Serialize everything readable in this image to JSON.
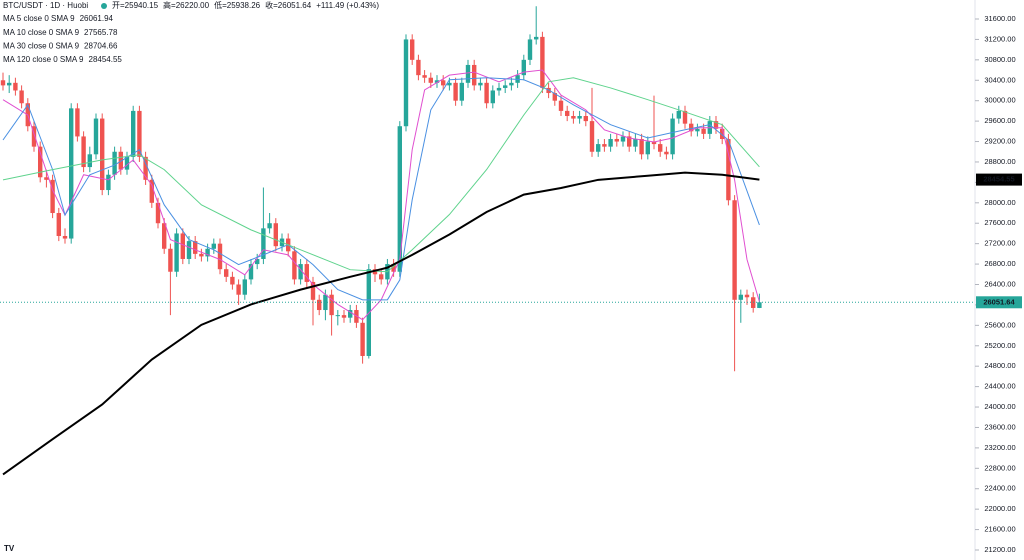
{
  "header": {
    "title": "BTC/USDT · 1D · Huobi",
    "ohlc": [
      "开=25940.15",
      "高=26220.00",
      "低=25938.26",
      "收=26051.64",
      "+111.49 (+0.43%)"
    ]
  },
  "chart_data": {
    "type": "candlestick",
    "up_color": "#26a69a",
    "down_color": "#ef5350",
    "candles": {
      "open": [
        30400,
        30300,
        30350,
        30200,
        29950,
        29500,
        29100,
        28500,
        28450,
        27800,
        27350,
        27300,
        29850,
        29300,
        28700,
        28950,
        29650,
        28250,
        28550,
        29000,
        28650,
        28900,
        29800,
        28900,
        28450,
        28000,
        27600,
        27100,
        26650,
        27400,
        26900,
        27250,
        27000,
        26950,
        27100,
        27200,
        26700,
        26550,
        26400,
        26200,
        26500,
        26800,
        26900,
        27500,
        27600,
        27150,
        27300,
        27050,
        26500,
        26800,
        26450,
        26100,
        25900,
        26200,
        25800,
        25800,
        25750,
        25900,
        25650,
        25000,
        26700,
        26600,
        26500,
        26800,
        26650,
        29500,
        31200,
        30800,
        30500,
        30450,
        30350,
        30400,
        30300,
        30350,
        30000,
        30350,
        30700,
        30300,
        30350,
        29950,
        30200,
        30250,
        30300,
        30350,
        30500,
        30800,
        31200,
        31250,
        30250,
        30150,
        30000,
        29800,
        29700,
        29650,
        29700,
        29600,
        29000,
        29150,
        29100,
        29250,
        29200,
        29300,
        29100,
        29250,
        28950,
        29200,
        29150,
        29000,
        28950,
        29650,
        29800,
        29550,
        29400,
        29450,
        29350,
        29600,
        29450,
        29250,
        28050,
        26100,
        26200,
        26150,
        25940.15
      ],
      "high": [
        30550,
        30500,
        30450,
        30300,
        30050,
        29600,
        29200,
        28650,
        28550,
        27900,
        27500,
        29950,
        29950,
        29400,
        29100,
        29750,
        29750,
        28650,
        29100,
        29100,
        29000,
        29900,
        29900,
        29000,
        28550,
        28100,
        27700,
        27200,
        27500,
        27500,
        27350,
        27350,
        27100,
        27200,
        27300,
        27300,
        26800,
        26650,
        26500,
        26600,
        26900,
        27000,
        28300,
        27800,
        27700,
        27400,
        27400,
        27150,
        26900,
        26900,
        26550,
        26200,
        26300,
        26300,
        25900,
        25900,
        26000,
        26000,
        25750,
        26800,
        26800,
        26700,
        26900,
        26900,
        29600,
        31300,
        31300,
        30900,
        30600,
        30550,
        30500,
        30500,
        30450,
        30450,
        30450,
        30800,
        30800,
        30450,
        30450,
        30300,
        30350,
        30400,
        30450,
        30600,
        30900,
        31300,
        31850,
        31350,
        30350,
        30250,
        30100,
        29900,
        29800,
        29800,
        29800,
        30250,
        29250,
        29250,
        29350,
        29350,
        29400,
        29400,
        29350,
        29350,
        29300,
        30100,
        29250,
        29100,
        29750,
        29900,
        29900,
        29650,
        29550,
        29550,
        29700,
        29700,
        29550,
        29350,
        28150,
        26300,
        26300,
        26250,
        26220
      ],
      "low": [
        30200,
        30150,
        30100,
        29850,
        29400,
        29000,
        28400,
        28300,
        27700,
        27250,
        27200,
        27200,
        29200,
        28600,
        28600,
        28850,
        28150,
        28150,
        28450,
        28550,
        28550,
        28800,
        28800,
        28350,
        27900,
        27500,
        27000,
        25800,
        26550,
        26800,
        26800,
        26900,
        26850,
        26850,
        27000,
        26600,
        26450,
        26300,
        26000,
        26100,
        26400,
        26700,
        26800,
        27400,
        27050,
        27050,
        26950,
        26400,
        26400,
        26350,
        25600,
        25800,
        25700,
        25400,
        25600,
        25650,
        25650,
        25550,
        24850,
        24950,
        26450,
        26400,
        26400,
        26550,
        26550,
        29400,
        30700,
        30400,
        30350,
        30250,
        30250,
        30200,
        30200,
        29900,
        29900,
        30250,
        30200,
        30200,
        29850,
        29850,
        30100,
        30150,
        30200,
        30250,
        30400,
        30700,
        31100,
        30150,
        30050,
        29900,
        29700,
        29600,
        29550,
        29550,
        29500,
        28900,
        28900,
        29000,
        29000,
        29100,
        29100,
        29000,
        29000,
        28850,
        28850,
        29050,
        28900,
        28850,
        28850,
        29550,
        29450,
        29300,
        29300,
        29250,
        29250,
        29350,
        29150,
        27950,
        24700,
        25650,
        26000,
        25850,
        25938.26
      ],
      "close": [
        30300,
        30350,
        30200,
        29950,
        29500,
        29100,
        28500,
        28450,
        27800,
        27350,
        27300,
        29850,
        29300,
        28700,
        28950,
        29650,
        28250,
        28550,
        29000,
        28650,
        28900,
        29800,
        28900,
        28450,
        28000,
        27600,
        27100,
        26650,
        27400,
        26900,
        27250,
        27000,
        26950,
        27100,
        27200,
        26700,
        26550,
        26400,
        26200,
        26500,
        26800,
        26900,
        27500,
        27600,
        27150,
        27300,
        27050,
        26500,
        26800,
        26450,
        26100,
        25900,
        26200,
        25800,
        25800,
        25750,
        25900,
        25650,
        25000,
        26700,
        26600,
        26500,
        26800,
        26650,
        29500,
        31200,
        30800,
        30500,
        30450,
        30350,
        30400,
        30300,
        30350,
        30000,
        30350,
        30700,
        30300,
        30350,
        29950,
        30200,
        30250,
        30300,
        30350,
        30500,
        30800,
        31200,
        31250,
        30250,
        30150,
        30000,
        29800,
        29700,
        29650,
        29700,
        29600,
        29000,
        29150,
        29100,
        29250,
        29200,
        29300,
        29100,
        29250,
        28950,
        29200,
        29150,
        29000,
        28950,
        29650,
        29800,
        29550,
        29400,
        29450,
        29350,
        29600,
        29450,
        29250,
        28050,
        26100,
        26200,
        26150,
        25940.15,
        26051.64
      ]
    },
    "series": [
      {
        "name": "MA 5 close 0 SMA 9",
        "legend_value": "26061.94",
        "color": "#e04fd0",
        "width": 1,
        "x": [
          0,
          4,
          8,
          10,
          13,
          17,
          21,
          24,
          27,
          31,
          35,
          39,
          42,
          46,
          50,
          54,
          58,
          61,
          64,
          66,
          68,
          72,
          76,
          80,
          84,
          87,
          90,
          94,
          97,
          101,
          105,
          108,
          112,
          116,
          118,
          120,
          122
        ],
        "values": [
          30020,
          29720,
          28250,
          27760,
          28550,
          28450,
          28840,
          28350,
          27280,
          27080,
          26890,
          26590,
          27080,
          26980,
          26400,
          26010,
          25710,
          26100,
          26890,
          29040,
          30210,
          30500,
          30560,
          30370,
          30560,
          30600,
          30110,
          29820,
          29430,
          29270,
          29190,
          29270,
          29470,
          29470,
          28450,
          26890,
          26061.94
        ]
      },
      {
        "name": "MA 10 close 0 SMA 9",
        "legend_value": "27565.78",
        "color": "#4a90e2",
        "width": 1,
        "x": [
          0,
          4,
          8,
          10,
          14,
          18,
          22,
          26,
          30,
          34,
          38,
          42,
          46,
          50,
          54,
          58,
          62,
          64,
          66,
          69,
          72,
          78,
          84,
          88,
          92,
          98,
          104,
          110,
          114,
          117,
          122
        ],
        "values": [
          29230,
          29920,
          28650,
          27760,
          28550,
          28740,
          29040,
          27960,
          27280,
          27080,
          26790,
          26980,
          27180,
          26790,
          26300,
          26100,
          26100,
          26490,
          28060,
          29820,
          30410,
          30450,
          30410,
          30210,
          29920,
          29530,
          29270,
          29430,
          29530,
          29230,
          27565.78
        ]
      },
      {
        "name": "MA 30 close 0 SMA 9",
        "legend_value": "28704.66",
        "color": "#5fd38d",
        "width": 1,
        "x": [
          0,
          8,
          16,
          22,
          26,
          32,
          40,
          48,
          56,
          62,
          66,
          72,
          78,
          84,
          88,
          92,
          98,
          104,
          110,
          116,
          122
        ],
        "values": [
          28450,
          28650,
          28840,
          28940,
          28650,
          27960,
          27470,
          27080,
          26690,
          26650,
          27080,
          27770,
          28650,
          29720,
          30370,
          30450,
          30250,
          30020,
          29780,
          29530,
          28704.66
        ]
      },
      {
        "name": "MA 120 close 0 SMA 9",
        "legend_value": "28454.55",
        "color": "#000000",
        "width": 2,
        "x": [
          0,
          8,
          16,
          24,
          32,
          40,
          48,
          56,
          62,
          66,
          72,
          78,
          84,
          90,
          96,
          104,
          110,
          116,
          122
        ],
        "values": [
          22680,
          23370,
          24050,
          24930,
          25610,
          26010,
          26300,
          26550,
          26730,
          26980,
          27380,
          27820,
          28160,
          28290,
          28450,
          28530,
          28590,
          28550,
          28454.55
        ]
      }
    ],
    "price_tags": [
      {
        "value": 28454.55,
        "color": "#000000",
        "text_color": "#ffffff"
      },
      {
        "value": 26051.64,
        "color": "#26a69a",
        "text_color": "#ffffff",
        "line": true
      }
    ],
    "ylim": [
      21200,
      31600
    ],
    "yticks": [
      {
        "value": 21200,
        "label": "21200.00"
      },
      {
        "value": 21600,
        "label": "21600.00"
      },
      {
        "value": 22000,
        "label": "22000.00"
      },
      {
        "value": 22400,
        "label": "22400.00"
      },
      {
        "value": 22800,
        "label": "22800.00"
      },
      {
        "value": 23200,
        "label": "23200.00"
      },
      {
        "value": 23600,
        "label": "23600.00"
      },
      {
        "value": 24000,
        "label": "24000.00"
      },
      {
        "value": 24400,
        "label": "24400.00"
      },
      {
        "value": 24800,
        "label": "24800.00"
      },
      {
        "value": 25200,
        "label": "25200.00"
      },
      {
        "value": 25600,
        "label": "25600.00"
      },
      {
        "value": 26000,
        "label": "26000.00"
      },
      {
        "value": 26400,
        "label": "26400.00"
      },
      {
        "value": 26800,
        "label": "26800.00"
      },
      {
        "value": 27200,
        "label": "27200.00"
      },
      {
        "value": 27600,
        "label": "27600.00"
      },
      {
        "value": 28000,
        "label": "28000.00"
      },
      {
        "value": 28400,
        "label": "28400.00"
      },
      {
        "value": 28800,
        "label": "28800.00"
      },
      {
        "value": 29200,
        "label": "29200.00"
      },
      {
        "value": 29600,
        "label": "29600.00"
      },
      {
        "value": 30000,
        "label": "30000.00"
      },
      {
        "value": 30400,
        "label": "30400.00"
      },
      {
        "value": 30800,
        "label": "30800.00"
      },
      {
        "value": 31200,
        "label": "31200.00"
      },
      {
        "value": 31600,
        "label": "31600.00"
      }
    ]
  }
}
